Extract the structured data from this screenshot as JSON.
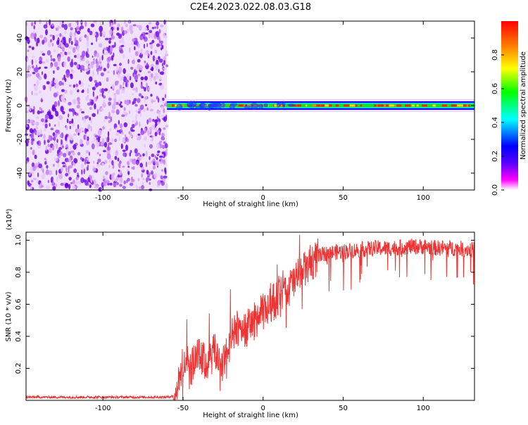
{
  "title": "C2E4.2023.022.08.03.G18",
  "chart_data": [
    {
      "type": "heatmap",
      "xlabel": "Height of straight line (km)",
      "ylabel": "Frequency (Hz)",
      "xlim": [
        -148,
        132
      ],
      "ylim": [
        -50,
        50
      ],
      "xticks": [
        -100,
        -50,
        0,
        50,
        100
      ],
      "yticks": [
        -40,
        -20,
        0,
        20,
        40
      ],
      "noise_region_x": [
        -148,
        -60
      ],
      "signal_band_freq_hz": 0,
      "colorbar": {
        "label": "Normalized spectral amplitude",
        "range": [
          0,
          1
        ],
        "ticks": [
          "0.0",
          "0.2",
          "0.4",
          "0.6",
          "0.8"
        ],
        "colors": [
          "#ffffff",
          "#ff00ff",
          "#5500ff",
          "#0000ff",
          "#00ffff",
          "#00ff00",
          "#ffff00",
          "#ff7f00",
          "#ff0000"
        ]
      }
    },
    {
      "type": "line",
      "xlabel": "Height of straight line (km)",
      "ylabel": "SNR (10 * v/v)",
      "y_multiplier": "(x10⁴)",
      "xlim": [
        -148,
        132
      ],
      "ylim": [
        0,
        1.05
      ],
      "xticks": [
        -100,
        -50,
        0,
        50,
        100
      ],
      "yticks": [
        "0.2",
        "0.4",
        "0.6",
        "0.8",
        "1.0"
      ],
      "color": "#ee3333",
      "x": [
        -148,
        -120,
        -90,
        -60,
        -55,
        -52,
        -50,
        -45,
        -40,
        -35,
        -30,
        -25,
        -20,
        -18,
        -15,
        -10,
        -5,
        0,
        5,
        10,
        15,
        20,
        25,
        30,
        35,
        40,
        50,
        60,
        70,
        80,
        90,
        100,
        110,
        120,
        132
      ],
      "y": [
        0.02,
        0.02,
        0.02,
        0.02,
        0.03,
        0.12,
        0.25,
        0.2,
        0.28,
        0.22,
        0.3,
        0.22,
        0.38,
        0.42,
        0.46,
        0.45,
        0.5,
        0.55,
        0.6,
        0.65,
        0.68,
        0.75,
        0.8,
        0.86,
        0.9,
        0.92,
        0.93,
        0.94,
        0.95,
        0.95,
        0.96,
        0.96,
        0.95,
        0.95,
        0.94
      ]
    }
  ]
}
